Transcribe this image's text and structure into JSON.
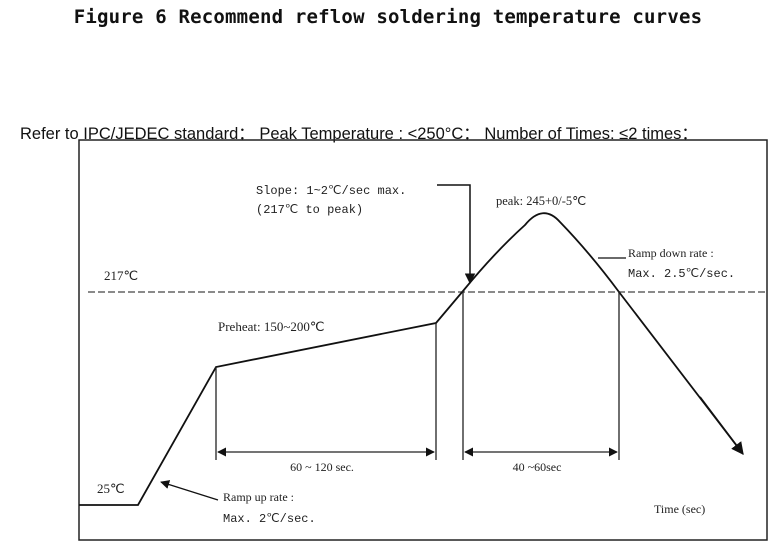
{
  "figure_title": "Figure 6 Recommend reflow soldering temperature curves",
  "standard_note": "Refer to IPC/JEDEC standard： Peak Temperature : <250°C： Number of Times: ≤2 times：",
  "labels": {
    "liquidus": "217℃",
    "ambient": "25℃",
    "preheat": "Preheat: 150~200℃",
    "peak": "peak: 245+0/-5℃",
    "slope_line1": "Slope: 1~2℃/sec max.",
    "slope_line2": "(217℃ to peak)",
    "ramp_down_line1": "Ramp down rate :",
    "ramp_down_line2": "Max. 2.5℃/sec.",
    "ramp_up_line1": "Ramp up rate :",
    "ramp_up_line2": "Max. 2℃/sec.",
    "preheat_duration": "60 ~ 120 sec.",
    "above_liquidus_duration": "40 ~60sec",
    "time_axis": "Time (sec)"
  }
}
